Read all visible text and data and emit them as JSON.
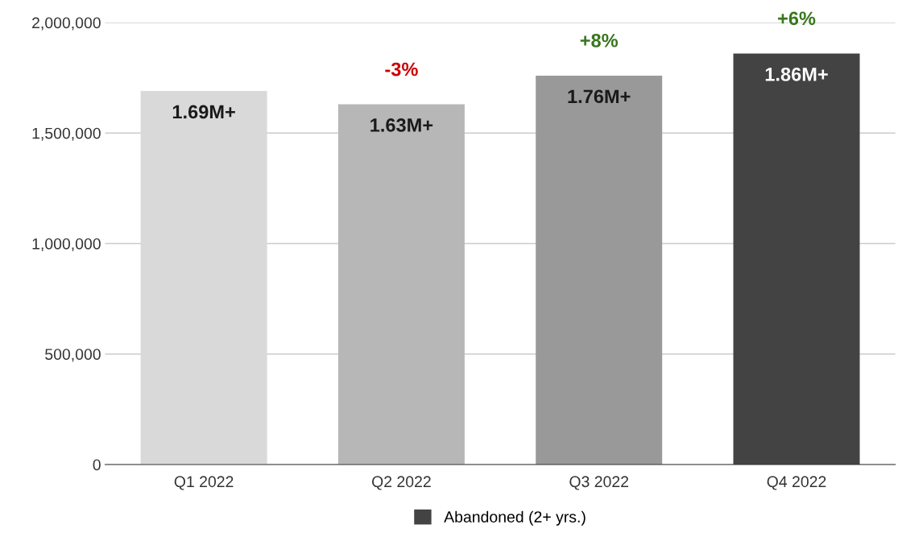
{
  "chart_data": {
    "type": "bar",
    "categories": [
      "Q1 2022",
      "Q2 2022",
      "Q3 2022",
      "Q4 2022"
    ],
    "series": [
      {
        "name": "Abandoned (2+ yrs.)",
        "color": "#434343",
        "colors": [
          "#d9d9d9",
          "#b7b7b7",
          "#999999",
          "#434343"
        ],
        "values": [
          1690000,
          1630000,
          1760000,
          1860000
        ],
        "value_labels": [
          "1.69M+",
          "1.63M+",
          "1.76M+",
          "1.86M+"
        ]
      }
    ],
    "annotations": [
      {
        "text": "-3%",
        "x": "Q2 2022",
        "y": 1630000
      },
      {
        "text": "+8%",
        "x": "Q3 2022",
        "y": 1760000
      },
      {
        "text": "+6%",
        "x": "Q4 2022",
        "y": 1860000
      }
    ],
    "ylim": [
      0,
      2000000
    ],
    "yticks": [
      0,
      {
        "value": 500000,
        "label": "500,000"
      },
      {
        "value": 1000000,
        "label": "1,000,000"
      },
      {
        "value": 1500000,
        "label": "1,500,000"
      },
      {
        "value": 2000000,
        "label": "2,000,000"
      }
    ],
    "grid": "y",
    "legend": "bottom"
  }
}
